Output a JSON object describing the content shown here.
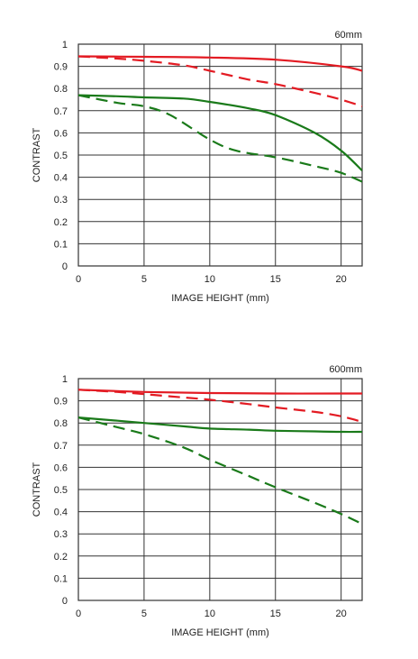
{
  "chart_data": [
    {
      "type": "line",
      "title": "60mm",
      "xlabel": "IMAGE HEIGHT (mm)",
      "ylabel": "CONTRAST",
      "xlim": [
        0,
        21.6
      ],
      "ylim": [
        0,
        1
      ],
      "x_ticks": [
        "0",
        "5",
        "10",
        "15",
        "20"
      ],
      "x_tick_values": [
        0,
        5,
        10,
        15,
        20
      ],
      "y_ticks": [
        "0",
        "0.1",
        "0.2",
        "0.3",
        "0.4",
        "0.5",
        "0.6",
        "0.7",
        "0.8",
        "0.9",
        "1"
      ],
      "y_tick_values": [
        0,
        0.1,
        0.2,
        0.3,
        0.4,
        0.5,
        0.6,
        0.7,
        0.8,
        0.9,
        1
      ],
      "grid": true,
      "series": [
        {
          "color": "#e31b23",
          "dash": "solid",
          "x": [
            0,
            5,
            10,
            15,
            20,
            21.6
          ],
          "y": [
            0.945,
            0.943,
            0.94,
            0.93,
            0.9,
            0.88
          ]
        },
        {
          "color": "#e31b23",
          "dash": "dashed",
          "x": [
            0,
            3,
            5,
            8,
            10,
            13,
            15,
            18,
            20,
            21.6
          ],
          "y": [
            0.945,
            0.935,
            0.925,
            0.905,
            0.88,
            0.84,
            0.82,
            0.78,
            0.75,
            0.72
          ]
        },
        {
          "color": "#1a7a1a",
          "dash": "solid",
          "x": [
            0,
            3,
            5,
            8,
            10,
            13,
            15,
            18,
            20,
            21.6
          ],
          "y": [
            0.77,
            0.765,
            0.76,
            0.755,
            0.74,
            0.71,
            0.68,
            0.6,
            0.52,
            0.43
          ]
        },
        {
          "color": "#1a7a1a",
          "dash": "dashed",
          "x": [
            0,
            3,
            5,
            7,
            10,
            12,
            15,
            18,
            20,
            21.6
          ],
          "y": [
            0.77,
            0.735,
            0.72,
            0.68,
            0.57,
            0.52,
            0.49,
            0.45,
            0.42,
            0.38
          ]
        }
      ]
    },
    {
      "type": "line",
      "title": "600mm",
      "xlabel": "IMAGE HEIGHT (mm)",
      "ylabel": "CONTRAST",
      "xlim": [
        0,
        21.6
      ],
      "ylim": [
        0,
        1
      ],
      "x_ticks": [
        "0",
        "5",
        "10",
        "15",
        "20"
      ],
      "x_tick_values": [
        0,
        5,
        10,
        15,
        20
      ],
      "y_ticks": [
        "0",
        "0.1",
        "0.2",
        "0.3",
        "0.4",
        "0.5",
        "0.6",
        "0.7",
        "0.8",
        "0.9",
        "1"
      ],
      "y_tick_values": [
        0,
        0.1,
        0.2,
        0.3,
        0.4,
        0.5,
        0.6,
        0.7,
        0.8,
        0.9,
        1
      ],
      "grid": true,
      "series": [
        {
          "color": "#e31b23",
          "dash": "solid",
          "x": [
            0,
            5,
            10,
            15,
            20,
            21.6
          ],
          "y": [
            0.95,
            0.94,
            0.935,
            0.933,
            0.933,
            0.933
          ]
        },
        {
          "color": "#e31b23",
          "dash": "dashed",
          "x": [
            0,
            3,
            5,
            8,
            10,
            13,
            15,
            18,
            20,
            21.6
          ],
          "y": [
            0.95,
            0.94,
            0.93,
            0.915,
            0.905,
            0.885,
            0.87,
            0.85,
            0.83,
            0.805
          ]
        },
        {
          "color": "#1a7a1a",
          "dash": "solid",
          "x": [
            0,
            3,
            5,
            8,
            10,
            13,
            15,
            18,
            20,
            21.6
          ],
          "y": [
            0.825,
            0.81,
            0.8,
            0.785,
            0.775,
            0.77,
            0.765,
            0.762,
            0.76,
            0.76
          ]
        },
        {
          "color": "#1a7a1a",
          "dash": "dashed",
          "x": [
            0,
            3,
            5,
            8,
            10,
            13,
            15,
            18,
            20,
            21.6
          ],
          "y": [
            0.825,
            0.78,
            0.75,
            0.69,
            0.635,
            0.56,
            0.51,
            0.44,
            0.39,
            0.345
          ]
        }
      ]
    }
  ]
}
